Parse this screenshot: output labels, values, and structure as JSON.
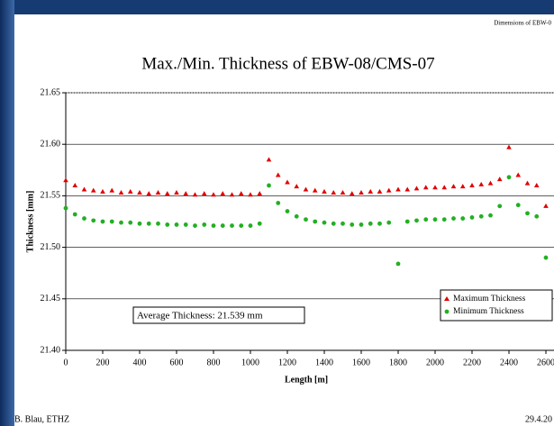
{
  "header": "Dimensions of EBW-0",
  "footer_left": "B. Blau, ETHZ",
  "footer_right": "29.4.20",
  "chart_data": {
    "type": "scatter",
    "title": "Max./Min. Thickness of EBW-08/CMS-07",
    "x_label": "Length  [m]",
    "y_label": "Thickness  [mm]",
    "annotation": "Average Thickness: 21.539 mm",
    "legend": "bottom right",
    "grid": true,
    "xlim": [
      0,
      2600
    ],
    "ylim": [
      21.4,
      21.65
    ],
    "xticks": [
      0,
      200,
      400,
      600,
      800,
      1000,
      1200,
      1400,
      1600,
      1800,
      2000,
      2200,
      2400,
      2600
    ],
    "yticks": [
      {
        "value": 21.4,
        "label": "21.40"
      },
      {
        "value": 21.45,
        "label": "21.45"
      },
      {
        "value": 21.5,
        "label": "21.50"
      },
      {
        "value": 21.55,
        "label": "21.55"
      },
      {
        "value": 21.6,
        "label": "21.60"
      },
      {
        "value": 21.65,
        "label": "21.65"
      }
    ],
    "x": [
      0,
      50,
      100,
      150,
      200,
      250,
      300,
      350,
      400,
      450,
      500,
      550,
      600,
      650,
      700,
      750,
      800,
      850,
      900,
      950,
      1000,
      1050,
      1100,
      1150,
      1200,
      1250,
      1300,
      1350,
      1400,
      1450,
      1500,
      1550,
      1600,
      1650,
      1700,
      1750,
      1800,
      1850,
      1900,
      1950,
      2000,
      2050,
      2100,
      2150,
      2200,
      2250,
      2300,
      2350,
      2400,
      2450,
      2500,
      2550,
      2600
    ],
    "series": [
      {
        "name": "Maximum Thickness",
        "color": "#e00000",
        "marker": "triangle",
        "values": [
          21.565,
          21.56,
          21.556,
          21.555,
          21.554,
          21.555,
          21.553,
          21.554,
          21.553,
          21.552,
          21.553,
          21.552,
          21.553,
          21.552,
          21.551,
          21.552,
          21.551,
          21.552,
          21.551,
          21.552,
          21.551,
          21.552,
          21.585,
          21.57,
          21.563,
          21.559,
          21.556,
          21.555,
          21.554,
          21.553,
          21.553,
          21.552,
          21.553,
          21.554,
          21.554,
          21.555,
          21.556,
          21.556,
          21.557,
          21.558,
          21.558,
          21.558,
          21.559,
          21.559,
          21.56,
          21.561,
          21.562,
          21.566,
          21.597,
          21.57,
          21.562,
          21.56,
          21.54
        ]
      },
      {
        "name": "Minimum Thickness",
        "color": "#22b022",
        "marker": "circle",
        "values": [
          21.538,
          21.532,
          21.528,
          21.526,
          21.525,
          21.525,
          21.524,
          21.524,
          21.523,
          21.523,
          21.523,
          21.522,
          21.522,
          21.522,
          21.521,
          21.522,
          21.521,
          21.521,
          21.521,
          21.521,
          21.521,
          21.523,
          21.56,
          21.543,
          21.535,
          21.53,
          21.527,
          21.525,
          21.524,
          21.523,
          21.523,
          21.522,
          21.522,
          21.523,
          21.523,
          21.524,
          21.484,
          21.525,
          21.526,
          21.527,
          21.527,
          21.527,
          21.528,
          21.528,
          21.529,
          21.53,
          21.531,
          21.54,
          21.568,
          21.541,
          21.533,
          21.53,
          21.49
        ]
      }
    ]
  }
}
